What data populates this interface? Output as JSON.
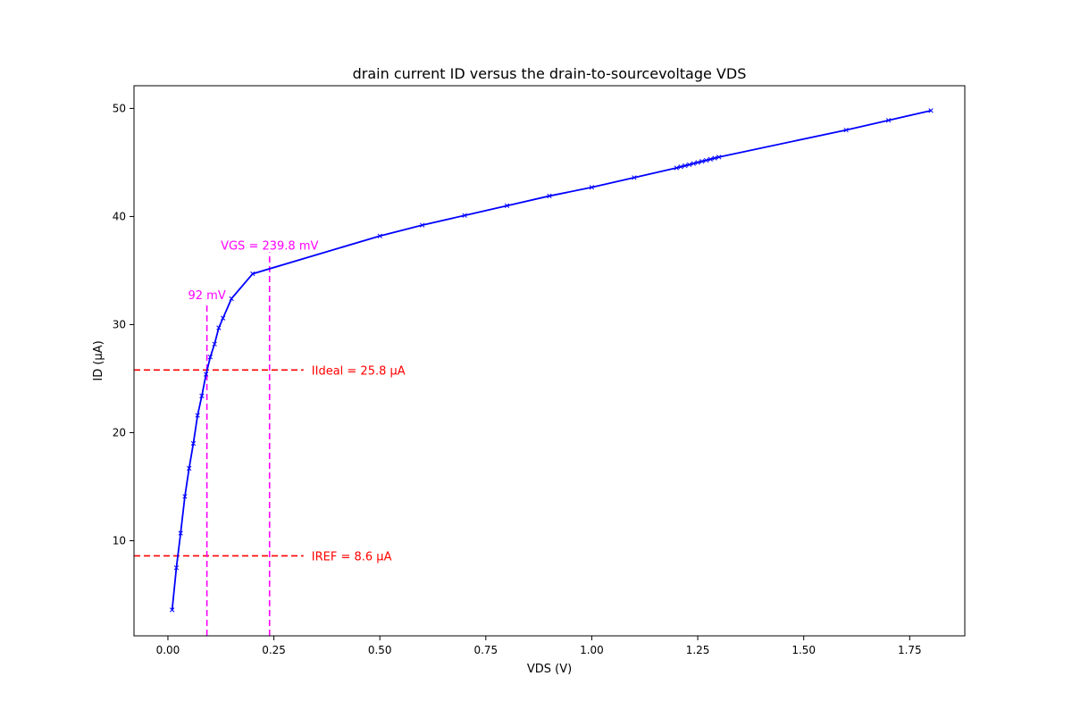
{
  "chart_data": {
    "type": "line",
    "title": "drain current ID versus the drain-to-sourcevoltage VDS",
    "xlabel": "VDS (V)",
    "ylabel": "ID (µA)",
    "xlim": [
      -0.08,
      1.88
    ],
    "ylim": [
      1.2,
      52.1
    ],
    "x_ticks": [
      0.0,
      0.25,
      0.5,
      0.75,
      1.0,
      1.25,
      1.5,
      1.75
    ],
    "x_tick_labels": [
      "0.00",
      "0.25",
      "0.50",
      "0.75",
      "1.00",
      "1.25",
      "1.50",
      "1.75"
    ],
    "y_ticks": [
      10,
      20,
      30,
      40,
      50
    ],
    "y_tick_labels": [
      "10",
      "20",
      "30",
      "40",
      "50"
    ],
    "grid": false,
    "series": [
      {
        "color": "#0000ff",
        "marker": "x",
        "x": [
          0.01,
          0.02,
          0.03,
          0.04,
          0.05,
          0.06,
          0.07,
          0.08,
          0.09,
          0.1,
          0.11,
          0.12,
          0.13,
          0.15,
          0.2,
          0.5,
          0.6,
          0.7,
          0.8,
          0.9,
          1.0,
          1.1,
          1.2,
          1.21,
          1.22,
          1.23,
          1.24,
          1.25,
          1.26,
          1.27,
          1.28,
          1.29,
          1.3,
          1.6,
          1.7,
          1.8
        ],
        "y": [
          3.6,
          7.5,
          10.7,
          14.1,
          16.7,
          19.0,
          21.6,
          23.4,
          25.4,
          27.0,
          28.2,
          29.7,
          30.6,
          32.4,
          34.7,
          38.2,
          39.2,
          40.1,
          41.0,
          41.9,
          42.7,
          43.6,
          44.5,
          44.6,
          44.7,
          44.8,
          44.9,
          45.0,
          45.1,
          45.2,
          45.3,
          45.4,
          45.5,
          48.0,
          48.9,
          49.8
        ]
      }
    ],
    "hlines": [
      {
        "y": 25.8,
        "x_end": 0.32,
        "color": "#ff0000",
        "label": "IIdeal = 25.8 µA"
      },
      {
        "y": 8.6,
        "x_end": 0.32,
        "color": "#ff0000",
        "label": "IREF = 8.6 µA"
      }
    ],
    "vlines": [
      {
        "x": 0.092,
        "y_end": 32.1,
        "color": "#ff00ff",
        "label": "92 mV"
      },
      {
        "x": 0.2398,
        "y_end": 36.7,
        "color": "#ff00ff",
        "label": "VGS = 239.8 mV"
      }
    ]
  }
}
